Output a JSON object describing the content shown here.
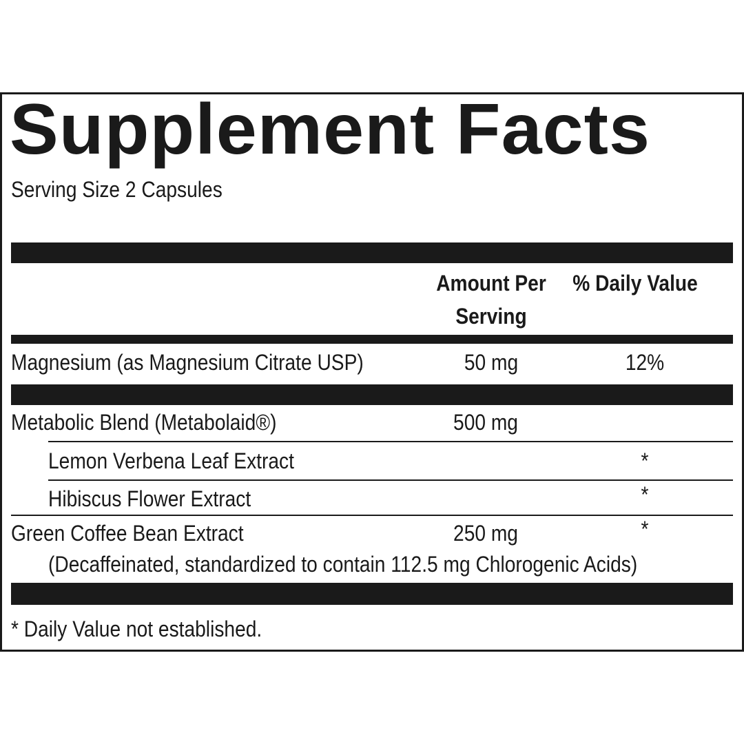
{
  "header": {
    "title": "Supplement Facts",
    "serving_size": "Serving Size 2 Capsules"
  },
  "table": {
    "columns": [
      "Amount Per Serving",
      "% Daily Value"
    ],
    "rows": [
      {
        "name": "Magnesium (as Magnesium Citrate USP)",
        "amount": "50 mg",
        "daily_value": "12%"
      },
      {
        "name": "Metabolic Blend (Metabolaid®)",
        "amount": "500 mg"
      },
      {
        "name": "Lemon Verbena Leaf Extract",
        "daily_value": "*"
      },
      {
        "name": "Hibiscus Flower Extract",
        "daily_value": "*"
      },
      {
        "name": "Green Coffee Bean Extract",
        "amount": "250 mg",
        "daily_value": "*",
        "note": "(Decaffeinated, standardized to contain 112.5 mg Chlorogenic Acids)"
      }
    ]
  },
  "footnote": "* Daily Value not established."
}
